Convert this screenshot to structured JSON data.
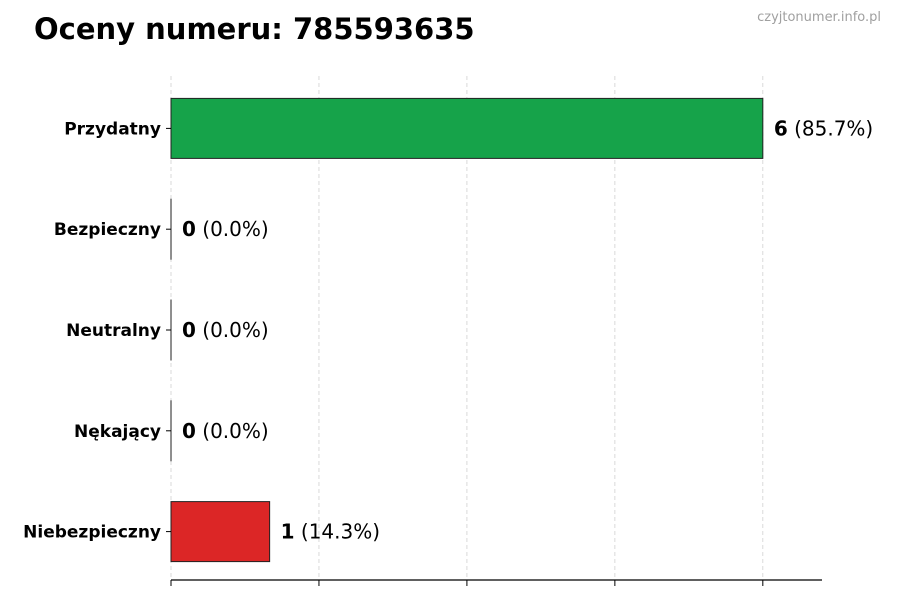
{
  "title": "Oceny numeru: 785593635",
  "watermark": "czyjtonumer.info.pl",
  "chart_data": {
    "type": "bar",
    "orientation": "horizontal",
    "title": "Oceny numeru: 785593635",
    "categories": [
      "Przydatny",
      "Bezpieczny",
      "Neutralny",
      "Nękający",
      "Niebezpieczny"
    ],
    "values": [
      6,
      0,
      0,
      0,
      1
    ],
    "labels": [
      "(85.7%)",
      "(0.0%)",
      "(0.0%)",
      "(0.0%)",
      "(14.3%)"
    ],
    "colors": [
      "#16a34a",
      "#16a34a",
      "#16a34a",
      "#dc2626",
      "#dc2626"
    ],
    "xlim": [
      0,
      6.6
    ],
    "xticks": [
      0,
      1.5,
      3,
      4.5,
      6
    ],
    "xtick_labels_shown": false,
    "grid": "vertical dashed",
    "xlabel": "",
    "ylabel": ""
  }
}
